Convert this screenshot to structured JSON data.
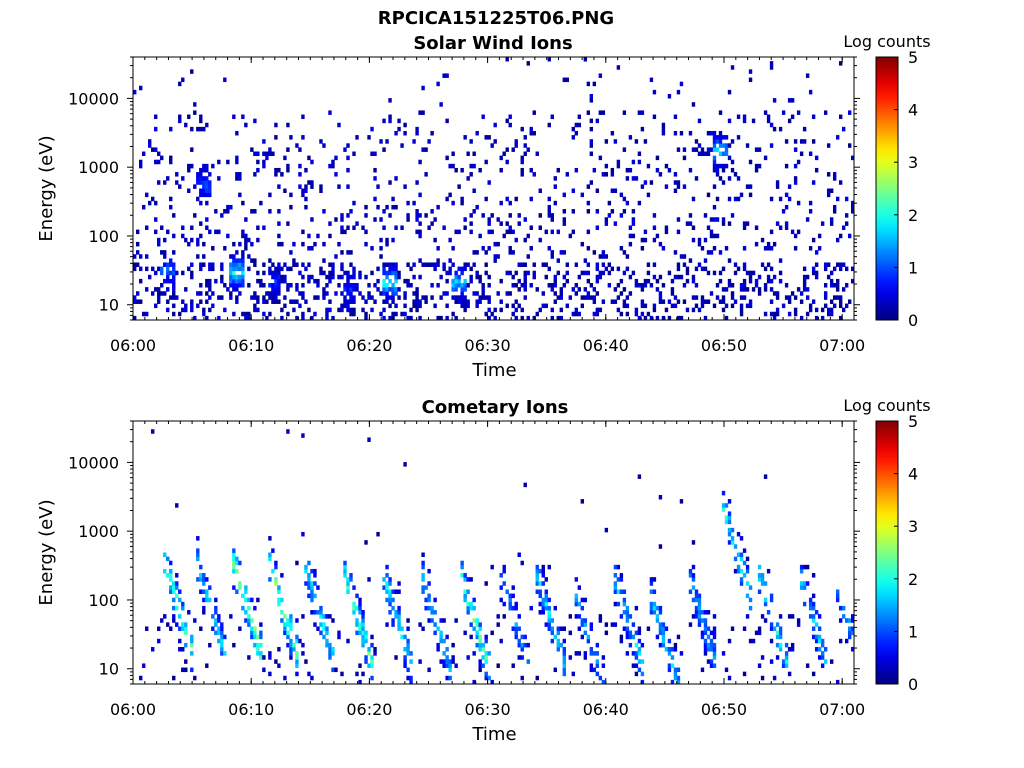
{
  "figure": {
    "title": "RPCICA151225T06.PNG"
  },
  "chart_data": [
    {
      "type": "heatmap",
      "title": "Solar Wind Ions",
      "xlabel": "Time",
      "ylabel": "Energy (eV)",
      "x_ticks": [
        "06:00",
        "06:10",
        "06:20",
        "06:30",
        "06:40",
        "06:50",
        "07:00"
      ],
      "y_ticks": [
        "10",
        "100",
        "1000",
        "10000"
      ],
      "xlim": [
        "06:00",
        "07:01"
      ],
      "ylim": [
        6,
        40000
      ],
      "y_scale": "log",
      "colorbar": {
        "label": "Log counts",
        "ticks": [
          "0",
          "1",
          "2",
          "3",
          "4",
          "5"
        ],
        "range": [
          0,
          5
        ],
        "colormap": "jet"
      },
      "pattern": "scattered",
      "bursts": [
        {
          "t": 2.8,
          "e": 30,
          "v": 1.3
        },
        {
          "t": 8.6,
          "e": 28,
          "v": 2.3
        },
        {
          "t": 11.8,
          "e": 20,
          "v": 1.0
        },
        {
          "t": 18.2,
          "e": 15,
          "v": 1.0
        },
        {
          "t": 21.6,
          "e": 20,
          "v": 2.2
        },
        {
          "t": 27.5,
          "e": 20,
          "v": 2.0
        },
        {
          "t": 49.5,
          "e": 1600,
          "v": 2.0
        },
        {
          "t": 5.9,
          "e": 500,
          "v": 1.2
        }
      ]
    },
    {
      "type": "heatmap",
      "title": "Cometary Ions",
      "xlabel": "Time",
      "ylabel": "Energy (eV)",
      "x_ticks": [
        "06:00",
        "06:10",
        "06:20",
        "06:30",
        "06:40",
        "06:50",
        "07:00"
      ],
      "y_ticks": [
        "10",
        "100",
        "1000",
        "10000"
      ],
      "xlim": [
        "06:00",
        "07:01"
      ],
      "ylim": [
        6,
        40000
      ],
      "y_scale": "log",
      "colorbar": {
        "label": "Log counts",
        "ticks": [
          "0",
          "1",
          "2",
          "3",
          "4",
          "5"
        ],
        "range": [
          0,
          5
        ],
        "colormap": "jet"
      },
      "pattern": "dispersed",
      "bursts": [
        {
          "t": 2.8,
          "e": 30,
          "v": 2.8
        },
        {
          "t": 5.5,
          "e": 30,
          "v": 2.0
        },
        {
          "t": 8.6,
          "e": 30,
          "v": 3.0
        },
        {
          "t": 11.6,
          "e": 30,
          "v": 2.9
        },
        {
          "t": 14.6,
          "e": 30,
          "v": 2.2
        },
        {
          "t": 18.0,
          "e": 20,
          "v": 2.6
        },
        {
          "t": 21.3,
          "e": 20,
          "v": 2.2
        },
        {
          "t": 24.5,
          "e": 20,
          "v": 2.0
        },
        {
          "t": 27.8,
          "e": 20,
          "v": 2.7
        },
        {
          "t": 31.2,
          "e": 20,
          "v": 1.6
        },
        {
          "t": 34.3,
          "e": 20,
          "v": 2.0
        },
        {
          "t": 37.6,
          "e": 10,
          "v": 1.7
        },
        {
          "t": 40.8,
          "e": 20,
          "v": 2.0
        },
        {
          "t": 43.9,
          "e": 10,
          "v": 2.0
        },
        {
          "t": 47.1,
          "e": 20,
          "v": 1.8
        },
        {
          "t": 50.0,
          "e": 200,
          "v": 2.3
        },
        {
          "t": 53.1,
          "e": 20,
          "v": 2.2
        },
        {
          "t": 56.5,
          "e": 20,
          "v": 2.0
        },
        {
          "t": 59.6,
          "e": 15,
          "v": 1.8
        }
      ]
    }
  ]
}
